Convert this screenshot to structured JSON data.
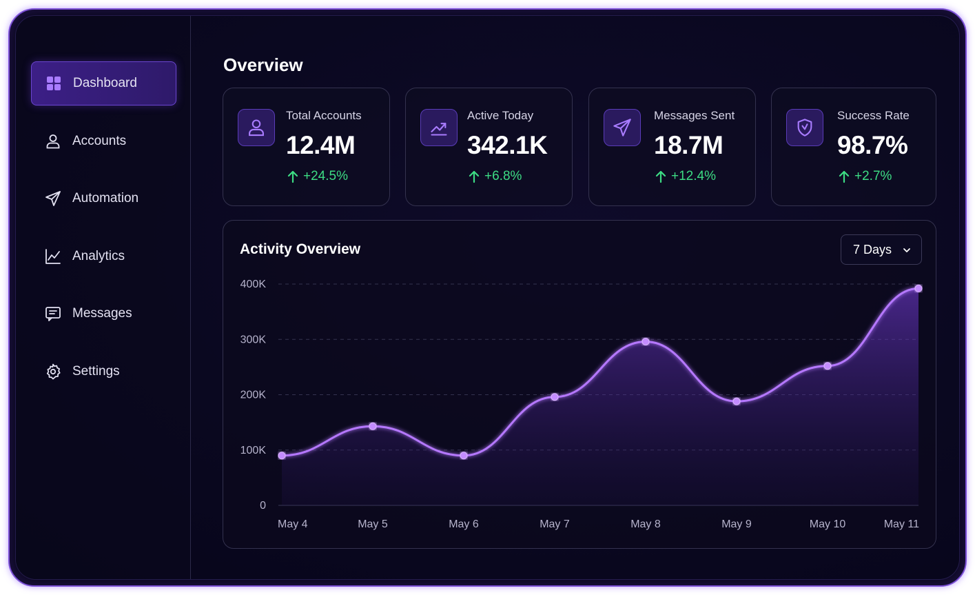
{
  "sidebar": {
    "items": [
      {
        "label": "Dashboard",
        "icon": "grid-icon",
        "active": true
      },
      {
        "label": "Accounts",
        "icon": "user-icon"
      },
      {
        "label": "Automation",
        "icon": "send-icon"
      },
      {
        "label": "Analytics",
        "icon": "line-chart-icon"
      },
      {
        "label": "Messages",
        "icon": "message-icon"
      },
      {
        "label": "Settings",
        "icon": "gear-icon"
      }
    ]
  },
  "main": {
    "title": "Overview",
    "stats": [
      {
        "label": "Total Accounts",
        "value": "12.4M",
        "change": "+24.5%",
        "icon": "user-icon"
      },
      {
        "label": "Active Today",
        "value": "342.1K",
        "change": "+6.8%",
        "icon": "trend-icon"
      },
      {
        "label": "Messages Sent",
        "value": "18.7M",
        "change": "+12.4%",
        "icon": "send-icon"
      },
      {
        "label": "Success Rate",
        "value": "98.7%",
        "change": "+2.7%",
        "icon": "shield-icon"
      }
    ],
    "activity": {
      "title": "Activity Overview",
      "range": "7 Days"
    }
  },
  "colors": {
    "accent": "#a86bff",
    "positive": "#3ddc84",
    "background": "#0a0820"
  },
  "chart_data": {
    "type": "area",
    "categories": [
      "May 4",
      "May 5",
      "May 6",
      "May 7",
      "May 8",
      "May 9",
      "May 10",
      "May 11"
    ],
    "values": [
      90000,
      143000,
      90000,
      196000,
      296000,
      188000,
      252000,
      392000
    ],
    "ylim": [
      0,
      400000
    ],
    "yticks": [
      0,
      100000,
      200000,
      300000,
      400000
    ],
    "ytick_labels": [
      "0",
      "100K",
      "200K",
      "300K",
      "400K"
    ],
    "grid": true
  }
}
